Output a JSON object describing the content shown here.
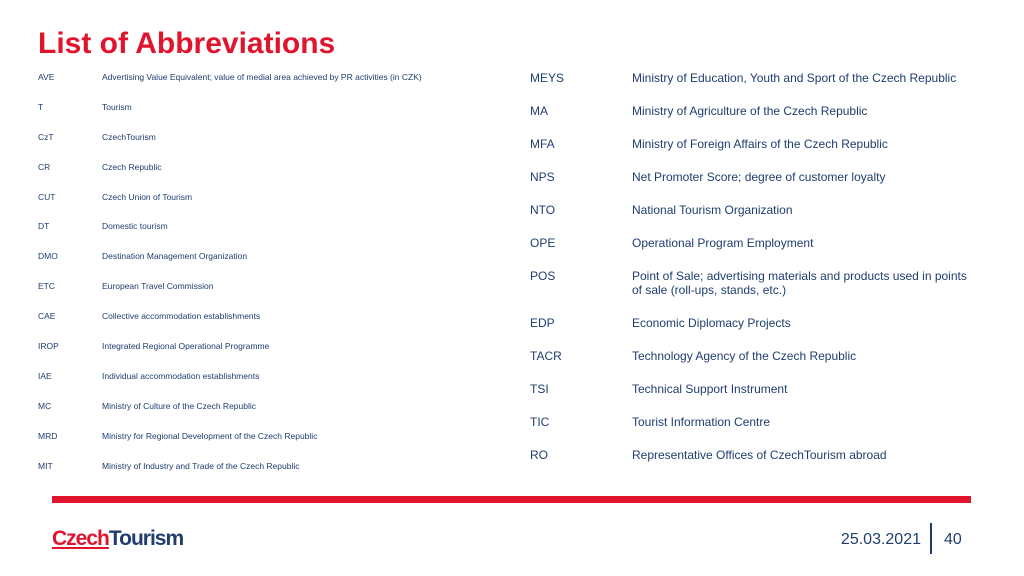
{
  "title": "List of Abbreviations",
  "left_list": [
    {
      "abbr": "AVE",
      "desc": "Advertising Value Equivalent; value of medial area achieved by PR activities (in CZK)"
    },
    {
      "abbr": "T",
      "desc": "Tourism"
    },
    {
      "abbr": "CzT",
      "desc": "CzechTourism"
    },
    {
      "abbr": "CR",
      "desc": "Czech Republic"
    },
    {
      "abbr": "CUT",
      "desc": "Czech Union of Tourism"
    },
    {
      "abbr": "DT",
      "desc": "Domestic tourism"
    },
    {
      "abbr": "DMO",
      "desc": "Destination Management Organization"
    },
    {
      "abbr": "ETC",
      "desc": "European Travel Commission"
    },
    {
      "abbr": "CAE",
      "desc": "Collective accommodation establishments"
    },
    {
      "abbr": "IROP",
      "desc": "Integrated Regional Operational Programme"
    },
    {
      "abbr": "IAE",
      "desc": "Individual accommodation establishments"
    },
    {
      "abbr": "MC",
      "desc": "Ministry of Culture of the Czech Republic"
    },
    {
      "abbr": "MRD",
      "desc": "Ministry for Regional Development of the Czech Republic"
    },
    {
      "abbr": "MIT",
      "desc": "Ministry of Industry and Trade of the Czech Republic"
    }
  ],
  "right_list": [
    {
      "abbr": "MEYS",
      "desc": "Ministry of Education, Youth and Sport of the Czech Republic"
    },
    {
      "abbr": "MA",
      "desc": "Ministry of Agriculture of the Czech Republic"
    },
    {
      "abbr": "MFA",
      "desc": "Ministry of Foreign Affairs of the Czech Republic"
    },
    {
      "abbr": "NPS",
      "desc": "Net Promoter Score; degree of customer loyalty"
    },
    {
      "abbr": "NTO",
      "desc": "National Tourism Organization"
    },
    {
      "abbr": "OPE",
      "desc": "Operational Program Employment"
    },
    {
      "abbr": "POS",
      "desc": "Point of Sale; advertising materials and products used in points of sale (roll-ups, stands, etc.)"
    },
    {
      "abbr": "EDP",
      "desc": "Economic Diplomacy Projects"
    },
    {
      "abbr": "TACR",
      "desc": "Technology Agency of the Czech Republic"
    },
    {
      "abbr": "TSI",
      "desc": "Technical Support Instrument"
    },
    {
      "abbr": "TIC",
      "desc": "Tourist Information Centre"
    },
    {
      "abbr": "RO",
      "desc": "Representative Offices of CzechTourism abroad"
    }
  ],
  "footer": {
    "logo_part1": "Czech",
    "logo_part2": "Tourism",
    "date": "25.03.2021",
    "page": "40"
  },
  "colors": {
    "brand_red": "#e1142d",
    "brand_blue": "#1f3d6e"
  }
}
